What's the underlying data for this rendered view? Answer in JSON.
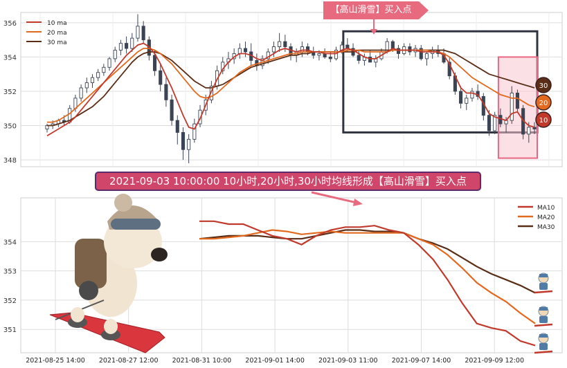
{
  "annotations": {
    "top_banner": "【高山滑雪】买入点",
    "middle_caption": "2021-09-03 10:00:00 10小时,20小时,30小时均线形成【高山滑雪】买入点"
  },
  "colors": {
    "ma10": "#c0392b",
    "ma20": "#e2691e",
    "ma30": "#5a2d17",
    "candle": "#3b4454",
    "highlight_box": "#2f3440",
    "pink_box": "#f7c6cf",
    "pink_border": "#e86680",
    "banner": "#e86a7e",
    "grid": "#dddddd"
  },
  "chart_data": [
    {
      "type": "candlestick",
      "title": "",
      "ylim": [
        347.6,
        356.6
      ],
      "yticks": [
        348,
        350,
        352,
        354,
        356
      ],
      "grid": true,
      "legend_position": "top-left",
      "legend": [
        "10 ma",
        "20 ma",
        "30 ma"
      ],
      "candles": [
        [
          349.8,
          350.1,
          349.6,
          350.0
        ],
        [
          350.0,
          350.3,
          349.8,
          350.1
        ],
        [
          350.1,
          350.4,
          349.9,
          350.3
        ],
        [
          350.3,
          350.6,
          350.0,
          350.2
        ],
        [
          350.2,
          351.2,
          350.1,
          351.0
        ],
        [
          351.0,
          351.8,
          350.8,
          351.6
        ],
        [
          351.6,
          352.4,
          351.4,
          352.2
        ],
        [
          352.2,
          352.8,
          351.9,
          352.5
        ],
        [
          352.5,
          353.0,
          352.2,
          352.8
        ],
        [
          352.8,
          353.3,
          352.6,
          353.1
        ],
        [
          353.1,
          353.6,
          352.9,
          353.4
        ],
        [
          353.4,
          354.0,
          353.2,
          353.9
        ],
        [
          353.9,
          354.6,
          353.7,
          354.4
        ],
        [
          354.4,
          355.0,
          354.1,
          354.8
        ],
        [
          354.8,
          355.2,
          354.2,
          354.5
        ],
        [
          354.5,
          355.4,
          354.3,
          355.1
        ],
        [
          355.1,
          356.5,
          354.9,
          355.8
        ],
        [
          355.8,
          356.1,
          354.8,
          355.0
        ],
        [
          355.0,
          355.2,
          353.8,
          354.1
        ],
        [
          354.1,
          354.4,
          352.9,
          353.2
        ],
        [
          353.2,
          353.6,
          352.0,
          352.4
        ],
        [
          352.4,
          352.8,
          351.1,
          351.5
        ],
        [
          351.5,
          351.8,
          350.0,
          350.3
        ],
        [
          350.3,
          350.6,
          348.9,
          349.6
        ],
        [
          349.6,
          349.9,
          348.0,
          348.6
        ],
        [
          348.6,
          349.5,
          347.8,
          349.2
        ],
        [
          349.2,
          350.4,
          349.0,
          350.1
        ],
        [
          350.1,
          351.2,
          349.9,
          350.9
        ],
        [
          350.9,
          351.8,
          350.6,
          351.5
        ],
        [
          351.5,
          352.6,
          351.3,
          352.3
        ],
        [
          352.3,
          353.5,
          352.1,
          353.2
        ],
        [
          353.2,
          354.0,
          353.0,
          353.7
        ],
        [
          353.7,
          354.3,
          353.3,
          353.9
        ],
        [
          353.9,
          354.5,
          353.6,
          354.2
        ],
        [
          354.2,
          354.8,
          353.9,
          354.5
        ],
        [
          354.5,
          354.9,
          354.0,
          354.3
        ],
        [
          354.3,
          354.8,
          353.5,
          353.8
        ],
        [
          353.8,
          354.2,
          353.2,
          353.5
        ],
        [
          353.5,
          354.1,
          353.3,
          353.9
        ],
        [
          353.9,
          354.5,
          353.6,
          354.3
        ],
        [
          354.3,
          354.9,
          354.0,
          354.6
        ],
        [
          354.6,
          355.4,
          354.3,
          354.9
        ],
        [
          354.9,
          355.3,
          354.3,
          354.6
        ],
        [
          354.6,
          354.8,
          353.8,
          354.1
        ],
        [
          354.1,
          354.5,
          353.7,
          354.3
        ],
        [
          354.3,
          354.9,
          354.0,
          354.6
        ],
        [
          354.6,
          354.8,
          354.1,
          354.3
        ],
        [
          354.3,
          354.6,
          353.9,
          354.1
        ],
        [
          354.1,
          354.4,
          353.8,
          354.2
        ],
        [
          354.2,
          354.5,
          353.9,
          354.0
        ],
        [
          354.0,
          354.3,
          353.7,
          353.9
        ],
        [
          353.9,
          354.6,
          353.8,
          354.4
        ],
        [
          354.4,
          354.9,
          354.2,
          354.7
        ],
        [
          354.7,
          355.1,
          354.3,
          354.5
        ],
        [
          354.5,
          354.8,
          354.0,
          354.1
        ],
        [
          354.1,
          354.4,
          353.6,
          353.8
        ],
        [
          353.8,
          354.2,
          353.5,
          354.0
        ],
        [
          354.0,
          354.4,
          353.7,
          353.7
        ],
        [
          353.7,
          354.1,
          353.4,
          353.9
        ],
        [
          353.9,
          354.5,
          353.8,
          354.3
        ],
        [
          354.3,
          355.1,
          354.2,
          354.9
        ],
        [
          354.9,
          355.0,
          354.3,
          354.5
        ],
        [
          354.5,
          354.7,
          353.9,
          354.2
        ],
        [
          354.2,
          354.8,
          354.1,
          354.6
        ],
        [
          354.6,
          354.8,
          354.1,
          354.3
        ],
        [
          354.3,
          354.7,
          354.0,
          354.5
        ],
        [
          354.5,
          354.7,
          353.8,
          353.9
        ],
        [
          353.9,
          354.3,
          353.5,
          354.2
        ],
        [
          354.2,
          354.6,
          353.9,
          354.4
        ],
        [
          354.4,
          354.7,
          354.0,
          354.2
        ],
        [
          354.2,
          354.5,
          353.6,
          353.7
        ],
        [
          353.7,
          354.0,
          352.7,
          352.9
        ],
        [
          352.9,
          353.1,
          351.8,
          352.0
        ],
        [
          352.0,
          352.3,
          351.0,
          351.3
        ],
        [
          351.3,
          351.8,
          350.9,
          351.6
        ],
        [
          351.6,
          352.2,
          351.4,
          352.0
        ],
        [
          352.0,
          352.4,
          351.5,
          351.7
        ],
        [
          351.7,
          351.9,
          350.3,
          350.6
        ],
        [
          350.6,
          350.9,
          349.4,
          349.7
        ],
        [
          349.7,
          350.8,
          349.5,
          350.6
        ],
        [
          350.6,
          351.0,
          349.9,
          350.1
        ],
        [
          350.1,
          350.5,
          349.6,
          350.3
        ],
        [
          350.3,
          352.3,
          350.1,
          351.9
        ],
        [
          351.9,
          352.1,
          350.8,
          351.0
        ],
        [
          351.0,
          351.2,
          349.2,
          349.5
        ],
        [
          349.5,
          350.2,
          349.0,
          349.9
        ],
        [
          349.9,
          350.2,
          349.5,
          349.8
        ]
      ],
      "ma10": [
        349.4,
        349.6,
        349.8,
        350.0,
        350.2,
        350.5,
        350.9,
        351.3,
        351.7,
        352.1,
        352.5,
        352.9,
        353.3,
        353.7,
        354.1,
        354.4,
        354.7,
        354.8,
        354.6,
        354.2,
        353.6,
        352.9,
        352.2,
        351.4,
        350.6,
        349.9,
        349.8,
        350.4,
        351.2,
        352.0,
        352.7,
        353.3,
        353.7,
        354.0,
        354.2,
        354.2,
        354.1,
        353.9,
        353.8,
        354.0,
        354.2,
        354.4,
        354.5,
        354.4,
        354.3,
        354.4,
        354.4,
        354.3,
        354.3,
        354.2,
        354.2,
        354.2,
        354.4,
        354.5,
        354.4,
        354.2,
        354.0,
        353.9,
        353.9,
        354.1,
        354.3,
        354.5,
        354.4,
        354.4,
        354.4,
        354.4,
        354.3,
        354.3,
        354.3,
        354.3,
        354.1,
        353.6,
        352.9,
        352.2,
        351.9,
        351.9,
        351.8,
        351.3,
        350.7,
        350.5,
        350.4,
        350.3,
        350.7,
        350.8,
        350.3,
        350.0,
        349.9
      ],
      "ma20": [
        350.2,
        350.2,
        350.3,
        350.5,
        350.7,
        351.0,
        351.3,
        351.6,
        351.9,
        352.2,
        352.5,
        352.8,
        353.1,
        353.4,
        353.7,
        354.0,
        354.3,
        354.5,
        354.5,
        354.4,
        354.2,
        353.9,
        353.6,
        353.2,
        352.8,
        352.4,
        352.0,
        351.7,
        351.6,
        351.7,
        351.9,
        352.2,
        352.5,
        352.8,
        353.1,
        353.3,
        353.5,
        353.6,
        353.7,
        353.8,
        353.9,
        354.0,
        354.1,
        354.2,
        354.2,
        354.3,
        354.3,
        354.3,
        354.3,
        354.3,
        354.3,
        354.3,
        354.3,
        354.4,
        354.4,
        354.4,
        354.3,
        354.3,
        354.3,
        354.3,
        354.3,
        354.4,
        354.4,
        354.4,
        354.4,
        354.4,
        354.4,
        354.4,
        354.3,
        354.3,
        354.2,
        354.0,
        353.7,
        353.4,
        353.1,
        352.8,
        352.6,
        352.4,
        352.2,
        352.0,
        351.8,
        351.7,
        351.6,
        351.6,
        351.4,
        351.2,
        351.1
      ],
      "ma30": [
        350.0,
        350.0,
        350.1,
        350.2,
        350.3,
        350.5,
        350.7,
        350.9,
        351.1,
        351.4,
        351.7,
        352.1,
        352.5,
        352.9,
        353.3,
        353.7,
        354.0,
        354.2,
        354.3,
        354.3,
        354.2,
        354.0,
        353.8,
        353.5,
        353.2,
        352.9,
        352.6,
        352.4,
        352.2,
        352.2,
        352.3,
        352.4,
        352.6,
        352.8,
        353.0,
        353.2,
        353.4,
        353.5,
        353.6,
        353.7,
        353.8,
        353.9,
        354.0,
        354.1,
        354.1,
        354.2,
        354.2,
        354.3,
        354.3,
        354.3,
        354.3,
        354.3,
        354.3,
        354.3,
        354.3,
        354.4,
        354.4,
        354.4,
        354.4,
        354.4,
        354.4,
        354.4,
        354.4,
        354.4,
        354.4,
        354.4,
        354.4,
        354.4,
        354.4,
        354.4,
        354.4,
        354.3,
        354.2,
        354.0,
        353.8,
        353.6,
        353.4,
        353.2,
        353.0,
        352.9,
        352.8,
        352.7,
        352.6,
        352.5,
        352.4,
        352.3,
        352.2
      ],
      "end_labels": [
        "30",
        "20",
        "10"
      ]
    },
    {
      "type": "line",
      "title": "",
      "ylim": [
        350.2,
        355.5
      ],
      "yticks": [
        351,
        352,
        353,
        354
      ],
      "grid": true,
      "legend_position": "top-right",
      "x_tick_labels": [
        "2021-08-25 14:00",
        "2021-08-27 12:00",
        "2021-08-31 10:00",
        "2021-09-01 14:00",
        "2021-09-03 11:00",
        "2021-09-07 14:00",
        "2021-09-09 12:00"
      ],
      "series": [
        {
          "name": "MA10",
          "values": [
            354.7,
            354.7,
            354.6,
            354.6,
            354.4,
            354.2,
            354.1,
            353.9,
            354.2,
            354.4,
            354.5,
            354.5,
            354.55,
            354.4,
            354.3,
            353.9,
            353.4,
            352.7,
            351.9,
            351.2,
            351.05,
            350.95,
            350.6,
            350.45
          ]
        },
        {
          "name": "MA20",
          "values": [
            354.1,
            354.1,
            354.15,
            354.2,
            354.3,
            354.4,
            354.35,
            354.25,
            354.3,
            354.35,
            354.3,
            354.3,
            354.3,
            354.3,
            354.3,
            354.1,
            353.9,
            353.55,
            353.1,
            352.6,
            352.25,
            351.95,
            351.55,
            351.2
          ]
        },
        {
          "name": "MA30",
          "values": [
            354.1,
            354.15,
            354.2,
            354.2,
            354.2,
            354.15,
            354.1,
            354.1,
            354.2,
            354.3,
            354.4,
            354.4,
            354.35,
            354.35,
            354.3,
            354.1,
            353.95,
            353.75,
            353.45,
            353.15,
            352.9,
            352.7,
            352.5,
            352.25
          ]
        }
      ]
    }
  ]
}
